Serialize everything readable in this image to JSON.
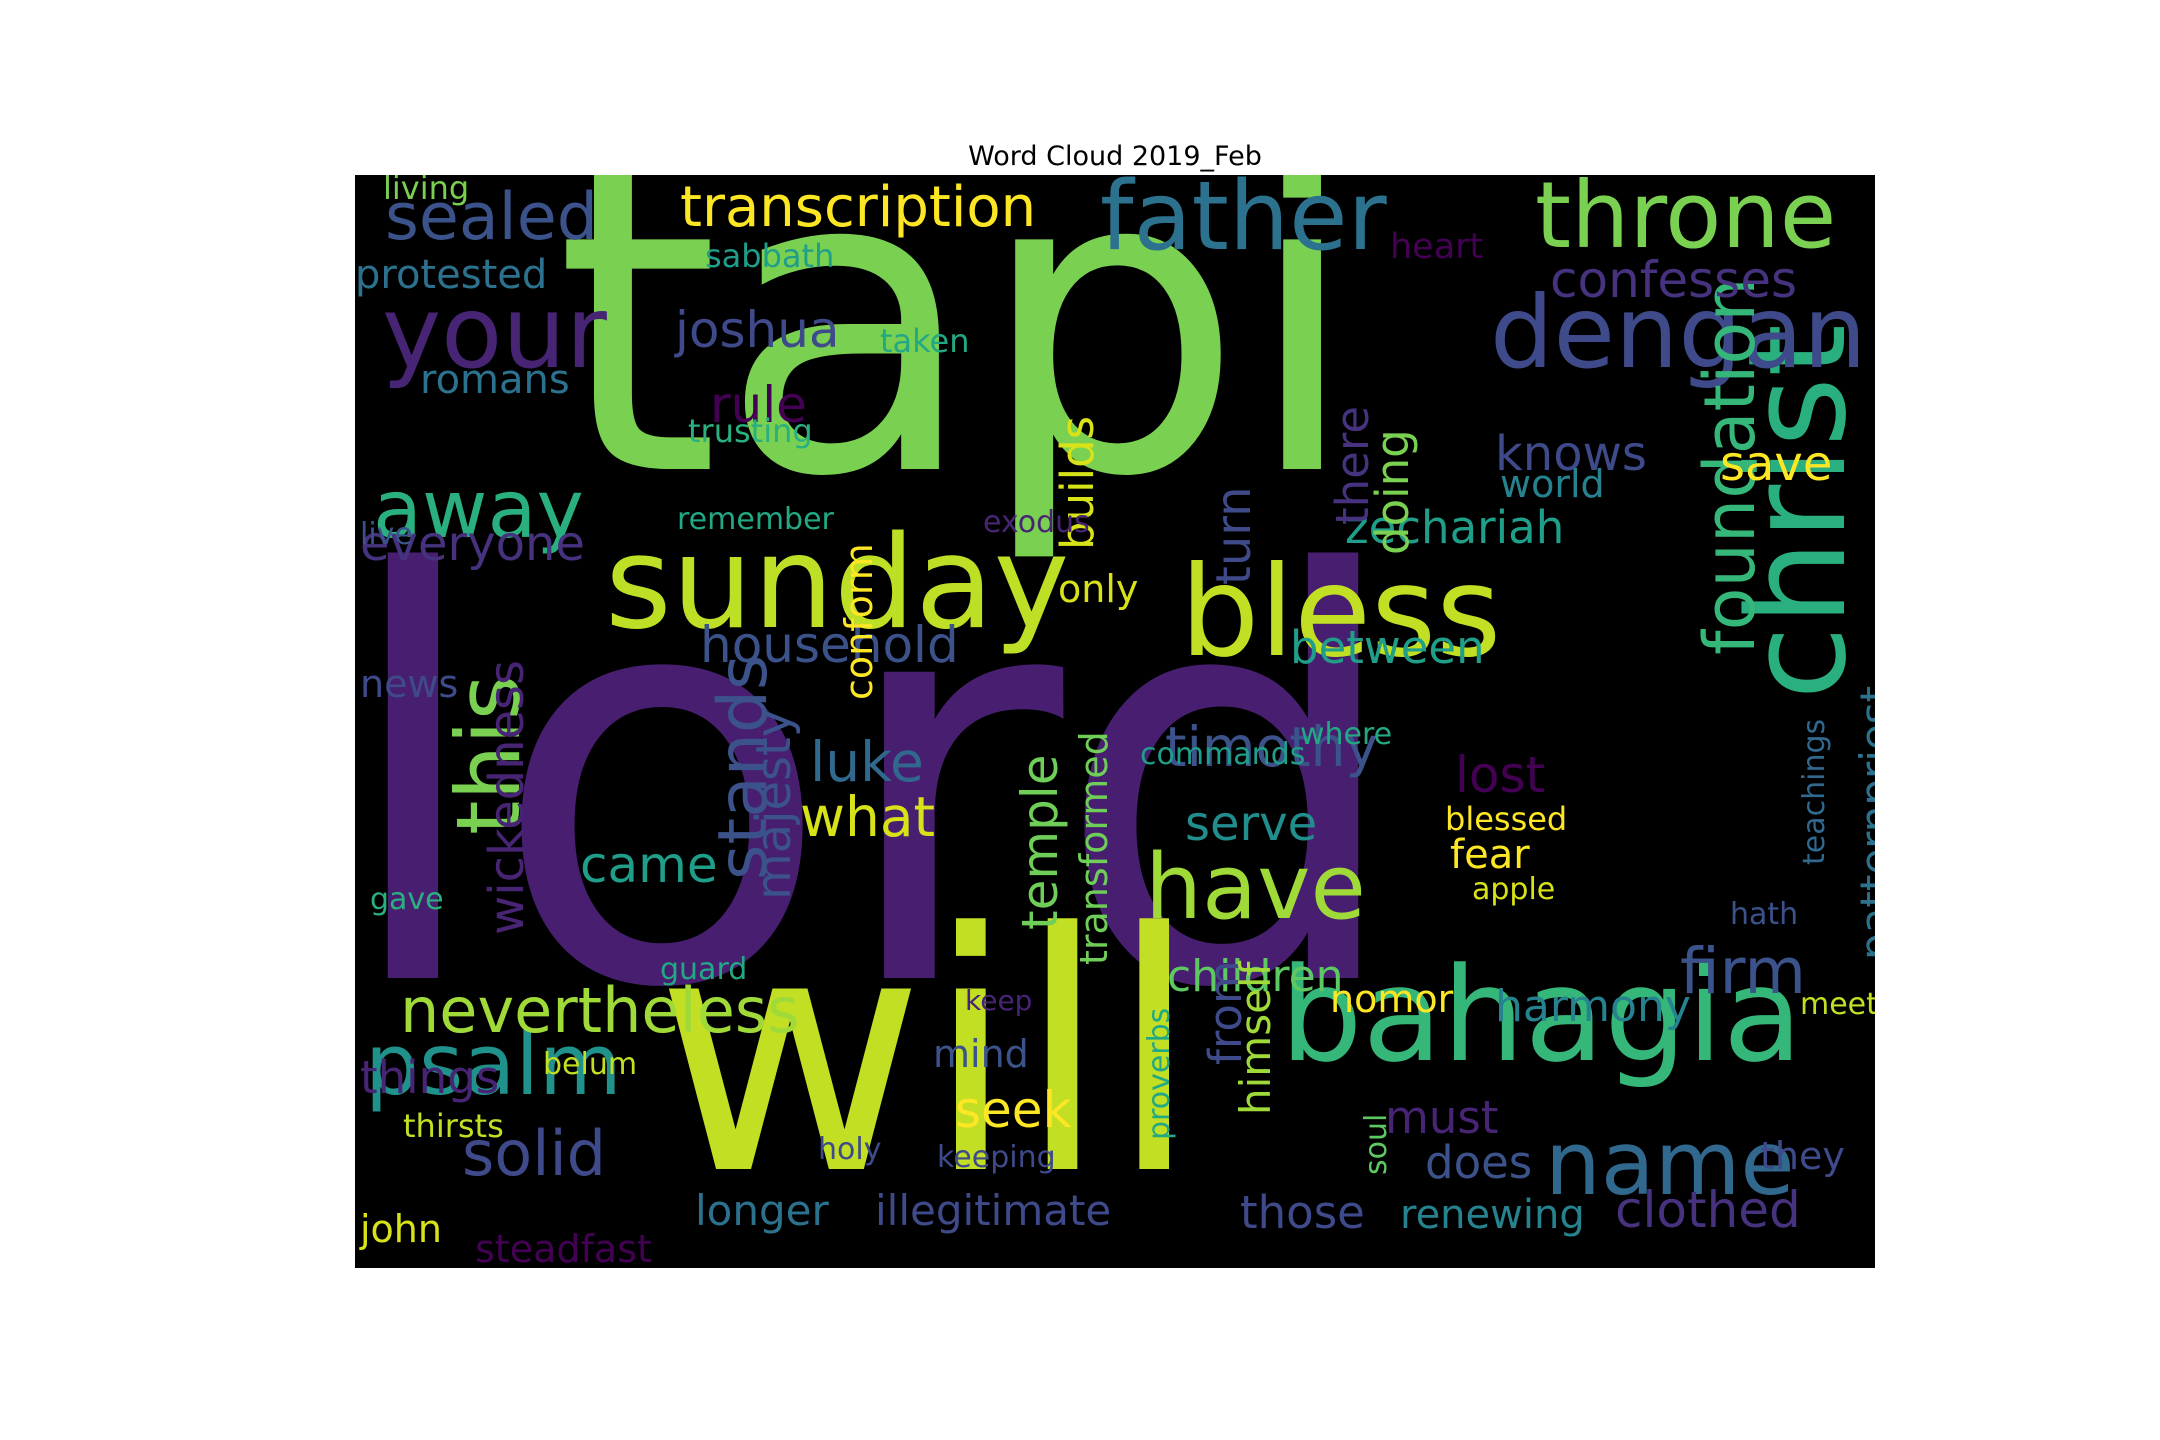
{
  "chart_data": {
    "type": "wordcloud",
    "title": "Word Cloud 2019_Feb",
    "background": "#000000",
    "colormap": "viridis",
    "words": [
      {
        "text": "lord",
        "weight": 1.0,
        "color": "#481f70"
      },
      {
        "text": "tapi",
        "weight": 0.86,
        "color": "#7ad151"
      },
      {
        "text": "will",
        "weight": 0.72,
        "color": "#c2df23"
      },
      {
        "text": "bahagia",
        "weight": 0.44,
        "color": "#35b779"
      },
      {
        "text": "sunday",
        "weight": 0.42,
        "color": "#bddf26"
      },
      {
        "text": "christ",
        "weight": 0.4,
        "color": "#2ab07f"
      },
      {
        "text": "bless",
        "weight": 0.38,
        "color": "#c2df23"
      },
      {
        "text": "dengan",
        "weight": 0.3,
        "color": "#3e4a89"
      },
      {
        "text": "your",
        "weight": 0.3,
        "color": "#482475"
      },
      {
        "text": "father",
        "weight": 0.29,
        "color": "#2c728e"
      },
      {
        "text": "throne",
        "weight": 0.28,
        "color": "#7ad151"
      },
      {
        "text": "have",
        "weight": 0.27,
        "color": "#a0da39"
      },
      {
        "text": "name",
        "weight": 0.27,
        "color": "#31688e"
      },
      {
        "text": "psalm",
        "weight": 0.26,
        "color": "#21918c"
      },
      {
        "text": "this",
        "weight": 0.26,
        "color": "#7ad151"
      },
      {
        "text": "away",
        "weight": 0.25,
        "color": "#2ab07f"
      },
      {
        "text": "foundation",
        "weight": 0.22,
        "color": "#35b779"
      },
      {
        "text": "stands",
        "weight": 0.22,
        "color": "#3b528b"
      },
      {
        "text": "sealed",
        "weight": 0.21,
        "color": "#3b528b"
      },
      {
        "text": "nevertheless",
        "weight": 0.21,
        "color": "#a0da39"
      },
      {
        "text": "firm",
        "weight": 0.2,
        "color": "#3b528b"
      },
      {
        "text": "solid",
        "weight": 0.2,
        "color": "#3e4a89"
      },
      {
        "text": "transcription",
        "weight": 0.19,
        "color": "#fde725"
      },
      {
        "text": "wickedness",
        "weight": 0.18,
        "color": "#482475"
      },
      {
        "text": "what",
        "weight": 0.18,
        "color": "#d8e219"
      },
      {
        "text": "luke",
        "weight": 0.18,
        "color": "#31688e"
      },
      {
        "text": "timothy",
        "weight": 0.18,
        "color": "#3b528b"
      },
      {
        "text": "confesses",
        "weight": 0.17,
        "color": "#46327e"
      },
      {
        "text": "majesty",
        "weight": 0.17,
        "color": "#3b528b"
      },
      {
        "text": "temple",
        "weight": 0.17,
        "color": "#6ece58"
      },
      {
        "text": "clothed",
        "weight": 0.17,
        "color": "#46327e"
      },
      {
        "text": "everyone",
        "weight": 0.17,
        "color": "#46327e"
      },
      {
        "text": "household",
        "weight": 0.17,
        "color": "#3b528b"
      },
      {
        "text": "knows",
        "weight": 0.17,
        "color": "#3e4a89"
      },
      {
        "text": "joshua",
        "weight": 0.16,
        "color": "#3e4a89"
      },
      {
        "text": "lost",
        "weight": 0.16,
        "color": "#440154"
      },
      {
        "text": "seek",
        "weight": 0.16,
        "color": "#fde725"
      },
      {
        "text": "rule",
        "weight": 0.16,
        "color": "#440154"
      },
      {
        "text": "came",
        "weight": 0.16,
        "color": "#1f9e89"
      },
      {
        "text": "zechariah",
        "weight": 0.16,
        "color": "#1f9e89"
      },
      {
        "text": "between",
        "weight": 0.16,
        "color": "#1f9e89"
      },
      {
        "text": "save",
        "weight": 0.16,
        "color": "#fde725"
      },
      {
        "text": "builds",
        "weight": 0.16,
        "color": "#d8e219"
      },
      {
        "text": "turn",
        "weight": 0.16,
        "color": "#3e4a89"
      },
      {
        "text": "serve",
        "weight": 0.16,
        "color": "#228d8d"
      },
      {
        "text": "children",
        "weight": 0.16,
        "color": "#5ec962"
      },
      {
        "text": "harmony",
        "weight": 0.16,
        "color": "#26828e"
      },
      {
        "text": "must",
        "weight": 0.16,
        "color": "#482475"
      },
      {
        "text": "does",
        "weight": 0.16,
        "color": "#3b528b"
      },
      {
        "text": "those",
        "weight": 0.16,
        "color": "#3e4a89"
      },
      {
        "text": "things",
        "weight": 0.16,
        "color": "#482475"
      },
      {
        "text": "illegitimate",
        "weight": 0.15,
        "color": "#3e4a89"
      },
      {
        "text": "longer",
        "weight": 0.15,
        "color": "#2c728e"
      },
      {
        "text": "renewing",
        "weight": 0.15,
        "color": "#26828e"
      },
      {
        "text": "patternpriest",
        "weight": 0.15,
        "color": "#2c728e"
      },
      {
        "text": "transformed",
        "weight": 0.15,
        "color": "#6ece58"
      },
      {
        "text": "conform",
        "weight": 0.15,
        "color": "#fde725"
      },
      {
        "text": "there",
        "weight": 0.15,
        "color": "#46327e"
      },
      {
        "text": "doing",
        "weight": 0.15,
        "color": "#7ad151"
      },
      {
        "text": "from",
        "weight": 0.15,
        "color": "#3e4a89"
      },
      {
        "text": "himself",
        "weight": 0.15,
        "color": "#a0da39"
      },
      {
        "text": "protested",
        "weight": 0.14,
        "color": "#2c728e"
      },
      {
        "text": "romans",
        "weight": 0.14,
        "color": "#2c728e"
      },
      {
        "text": "world",
        "weight": 0.14,
        "color": "#26828e"
      },
      {
        "text": "news",
        "weight": 0.14,
        "color": "#3e4a89"
      },
      {
        "text": "only",
        "weight": 0.14,
        "color": "#d8e219"
      },
      {
        "text": "nomor",
        "weight": 0.14,
        "color": "#fde725"
      },
      {
        "text": "mind",
        "weight": 0.14,
        "color": "#3b528b"
      },
      {
        "text": "john",
        "weight": 0.14,
        "color": "#d8e219"
      },
      {
        "text": "steadfast",
        "weight": 0.14,
        "color": "#440154"
      },
      {
        "text": "they",
        "weight": 0.14,
        "color": "#3e4a89"
      },
      {
        "text": "fear",
        "weight": 0.14,
        "color": "#fde725"
      },
      {
        "text": "blessed",
        "weight": 0.12,
        "color": "#fde725"
      },
      {
        "text": "sabbath",
        "weight": 0.12,
        "color": "#1f9e89"
      },
      {
        "text": "heart",
        "weight": 0.12,
        "color": "#440154"
      },
      {
        "text": "living",
        "weight": 0.12,
        "color": "#7ad151"
      },
      {
        "text": "trusting",
        "weight": 0.12,
        "color": "#2ab07f"
      },
      {
        "text": "taken",
        "weight": 0.12,
        "color": "#22a884"
      },
      {
        "text": "remember",
        "weight": 0.12,
        "color": "#22a884"
      },
      {
        "text": "exodus",
        "weight": 0.12,
        "color": "#482475"
      },
      {
        "text": "where",
        "weight": 0.12,
        "color": "#22a884"
      },
      {
        "text": "commands",
        "weight": 0.12,
        "color": "#1f9e89"
      },
      {
        "text": "teachings",
        "weight": 0.12,
        "color": "#31688e"
      },
      {
        "text": "live",
        "weight": 0.12,
        "color": "#3b528b"
      },
      {
        "text": "apple",
        "weight": 0.12,
        "color": "#d8e219"
      },
      {
        "text": "hath",
        "weight": 0.12,
        "color": "#3b528b"
      },
      {
        "text": "gave",
        "weight": 0.12,
        "color": "#2ab07f"
      },
      {
        "text": "guard",
        "weight": 0.12,
        "color": "#22a884"
      },
      {
        "text": "keep",
        "weight": 0.12,
        "color": "#482475"
      },
      {
        "text": "meet",
        "weight": 0.12,
        "color": "#c2df23"
      },
      {
        "text": "belum",
        "weight": 0.12,
        "color": "#c2df23"
      },
      {
        "text": "proverbs",
        "weight": 0.12,
        "color": "#22a884"
      },
      {
        "text": "thirsts",
        "weight": 0.12,
        "color": "#c2df23"
      },
      {
        "text": "holy",
        "weight": 0.12,
        "color": "#3e4a89"
      },
      {
        "text": "keeping",
        "weight": 0.12,
        "color": "#3e4a89"
      },
      {
        "text": "soul",
        "weight": 0.12,
        "color": "#5ec962"
      }
    ]
  }
}
